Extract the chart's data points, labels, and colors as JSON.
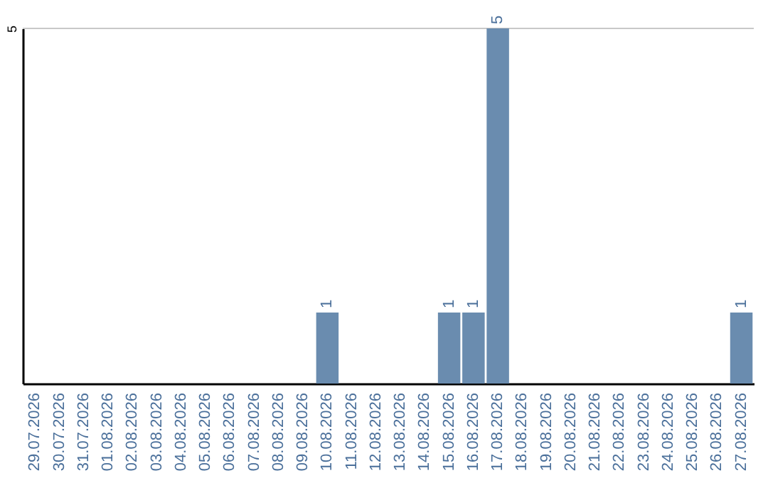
{
  "chart_data": {
    "type": "bar",
    "categories": [
      "29.07.2026",
      "30.07.2026",
      "31.07.2026",
      "01.08.2026",
      "02.08.2026",
      "03.08.2026",
      "04.08.2026",
      "05.08.2026",
      "06.08.2026",
      "07.08.2026",
      "08.08.2026",
      "09.08.2026",
      "10.08.2026",
      "11.08.2026",
      "12.08.2026",
      "13.08.2026",
      "14.08.2026",
      "15.08.2026",
      "16.08.2026",
      "17.08.2026",
      "18.08.2026",
      "19.08.2026",
      "20.08.2026",
      "21.08.2026",
      "22.08.2026",
      "23.08.2026",
      "24.08.2026",
      "25.08.2026",
      "26.08.2026",
      "27.08.2026"
    ],
    "values": [
      null,
      null,
      null,
      null,
      null,
      null,
      null,
      null,
      null,
      null,
      null,
      null,
      1,
      null,
      null,
      null,
      null,
      1,
      1,
      5,
      null,
      null,
      null,
      null,
      null,
      null,
      null,
      null,
      null,
      1
    ],
    "data_labels": true,
    "color": "#6a8caf",
    "ylim": [
      0,
      5
    ],
    "yticks": [
      5
    ],
    "ref_lines": [
      {
        "axis": "y",
        "value": 5,
        "color": "#c8c8c8"
      }
    ]
  }
}
